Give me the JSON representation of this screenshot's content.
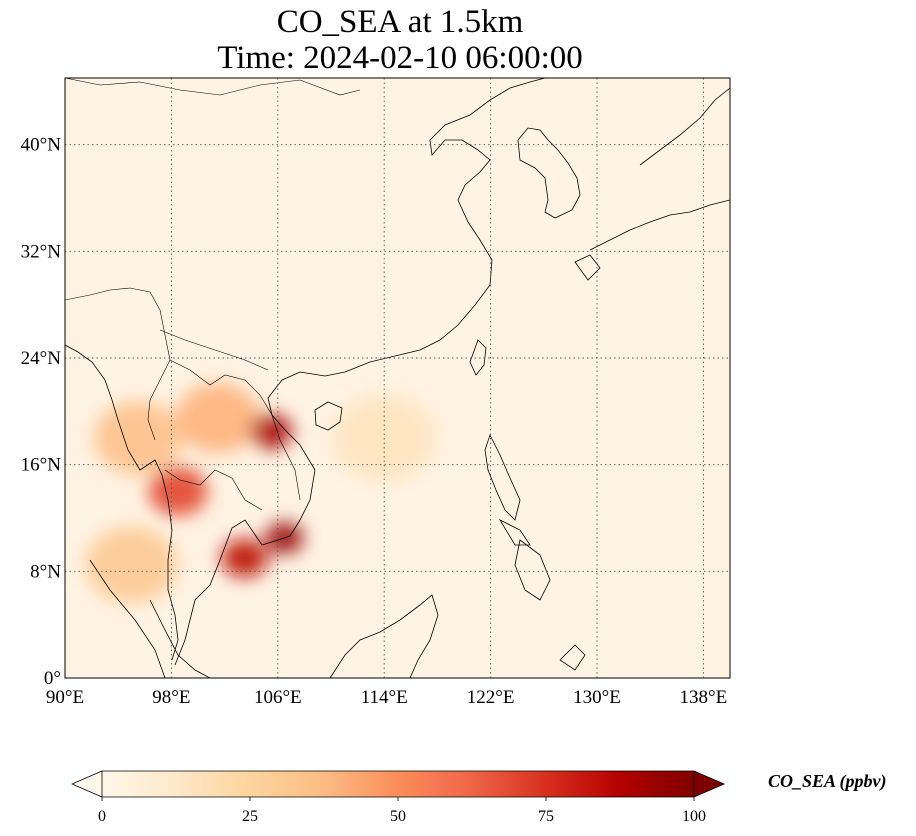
{
  "title": "CO_SEA at 1.5km",
  "subtitle": "Time: 2024-02-10 06:00:00",
  "colorbar": {
    "label": "CO_SEA (ppbv)",
    "ticks": [
      "0",
      "25",
      "50",
      "75",
      "100"
    ],
    "tick_values": [
      0,
      25,
      50,
      75,
      100
    ],
    "range": [
      0,
      100
    ],
    "colormap": "OrRd",
    "colors": [
      "#fff7ec",
      "#fee8c8",
      "#fdd49e",
      "#fdbb84",
      "#fc8d59",
      "#ef6548",
      "#d7301f",
      "#b30000",
      "#7f0000"
    ],
    "extend": "both"
  },
  "axes": {
    "lon_labels": [
      "90°E",
      "98°E",
      "106°E",
      "114°E",
      "122°E",
      "130°E",
      "138°E"
    ],
    "lon_values": [
      90,
      98,
      106,
      114,
      122,
      130,
      138
    ],
    "lat_labels": [
      "0°",
      "8°N",
      "16°N",
      "24°N",
      "32°N",
      "40°N"
    ],
    "lat_values": [
      0,
      8,
      16,
      24,
      32,
      40
    ],
    "lon_range": [
      90,
      140
    ],
    "lat_range": [
      0,
      45
    ],
    "gridlines": "dotted"
  },
  "field": {
    "background_value": 3,
    "plumes": [
      {
        "region": "northern Laos / northern Thailand",
        "lon": 101.5,
        "lat": 19.5,
        "value": 40
      },
      {
        "region": "northern Vietnam coast",
        "lon": 105.5,
        "lat": 18.5,
        "value": 90
      },
      {
        "region": "western Myanmar",
        "lon": 95.5,
        "lat": 18.0,
        "value": 35
      },
      {
        "region": "southern Myanmar / Andaman coast",
        "lon": 98.5,
        "lat": 14.0,
        "value": 70
      },
      {
        "region": "Gulf of Thailand / southern Cambodia",
        "lon": 103.5,
        "lat": 9.0,
        "value": 85
      },
      {
        "region": "Mekong delta",
        "lon": 106.5,
        "lat": 10.5,
        "value": 95
      },
      {
        "region": "Andaman Sea outflow",
        "lon": 95.0,
        "lat": 8.5,
        "value": 30
      },
      {
        "region": "South China Sea outflow",
        "lon": 114.0,
        "lat": 18.0,
        "value": 15
      }
    ]
  }
}
